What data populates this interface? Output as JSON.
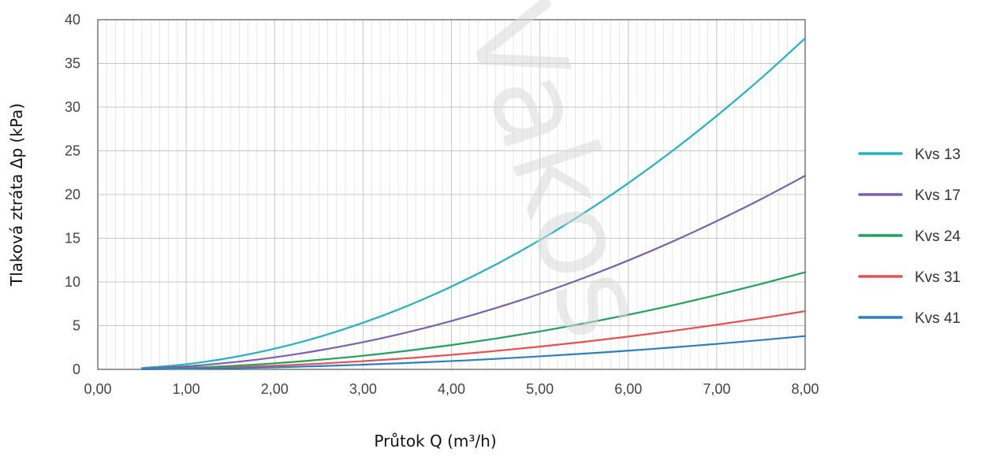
{
  "chart_data": {
    "type": "line",
    "xlabel": "Průtok Q (m³/h)",
    "ylabel": "Tlaková ztráta Δp (kPa)",
    "xlim": [
      0,
      8
    ],
    "ylim": [
      0,
      40
    ],
    "x_ticks": [
      "0,00",
      "1,00",
      "2,00",
      "3,00",
      "4,00",
      "5,00",
      "6,00",
      "7,00",
      "8,00"
    ],
    "y_ticks": [
      "0",
      "5",
      "10",
      "15",
      "20",
      "25",
      "30",
      "35",
      "40"
    ],
    "grid": true,
    "legend_position": "right",
    "x": [
      0.5,
      1.0,
      1.5,
      2.0,
      2.5,
      3.0,
      3.5,
      4.0,
      4.5,
      5.0,
      5.5,
      6.0,
      6.5,
      7.0,
      7.5,
      8.0
    ],
    "series": [
      {
        "name": "Kvs 13",
        "color": "#1fb3c6",
        "values": [
          0.15,
          0.59,
          1.33,
          2.37,
          3.7,
          5.33,
          7.25,
          9.47,
          11.98,
          14.79,
          17.9,
          21.3,
          25.0,
          29.0,
          33.28,
          37.87
        ]
      },
      {
        "name": "Kvs 17",
        "color": "#7b5fb0",
        "values": [
          0.09,
          0.35,
          0.78,
          1.38,
          2.16,
          3.11,
          4.24,
          5.54,
          7.01,
          8.65,
          10.47,
          12.46,
          14.62,
          16.96,
          19.46,
          22.15
        ]
      },
      {
        "name": "Kvs 24",
        "color": "#1ea35a",
        "values": [
          0.04,
          0.17,
          0.39,
          0.69,
          1.09,
          1.56,
          2.13,
          2.78,
          3.52,
          4.34,
          5.25,
          6.25,
          7.33,
          8.51,
          9.77,
          11.11
        ]
      },
      {
        "name": "Kvs 31",
        "color": "#e8504f",
        "values": [
          0.03,
          0.1,
          0.23,
          0.42,
          0.65,
          0.94,
          1.27,
          1.66,
          2.11,
          2.6,
          3.15,
          3.75,
          4.4,
          5.1,
          5.85,
          6.66
        ]
      },
      {
        "name": "Kvs 41",
        "color": "#2a7fc4",
        "values": [
          0.01,
          0.06,
          0.13,
          0.24,
          0.37,
          0.54,
          0.73,
          0.95,
          1.2,
          1.49,
          1.8,
          2.14,
          2.51,
          2.91,
          3.35,
          3.81
        ]
      }
    ]
  },
  "watermark": {
    "text": "Vakos"
  }
}
